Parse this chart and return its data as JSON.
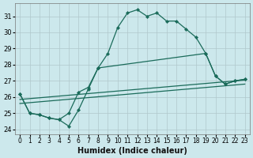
{
  "xlabel": "Humidex (Indice chaleur)",
  "bg_color": "#cce8ec",
  "grid_color": "#b8d8dc",
  "line_color": "#1a6b5a",
  "xlim": [
    -0.5,
    23.5
  ],
  "ylim": [
    23.7,
    31.8
  ],
  "xticks": [
    0,
    1,
    2,
    3,
    4,
    5,
    6,
    7,
    8,
    9,
    10,
    11,
    12,
    13,
    14,
    15,
    16,
    17,
    18,
    19,
    20,
    21,
    22,
    23
  ],
  "yticks": [
    24,
    25,
    26,
    27,
    28,
    29,
    30,
    31
  ],
  "curve1_x": [
    0,
    1,
    2,
    3,
    4,
    5,
    6,
    7,
    8,
    9,
    10,
    11,
    12,
    13,
    14,
    15,
    16,
    17,
    18,
    19,
    20,
    21,
    22,
    23
  ],
  "curve1_y": [
    26.2,
    25.0,
    24.9,
    24.7,
    24.6,
    24.2,
    25.2,
    26.5,
    27.8,
    28.7,
    30.3,
    31.2,
    31.4,
    31.0,
    31.2,
    30.7,
    30.7,
    30.2,
    29.7,
    28.7,
    27.3,
    26.8,
    27.0,
    27.1
  ],
  "curve2_x": [
    0,
    1,
    2,
    3,
    4,
    5,
    6,
    7,
    8,
    19,
    20,
    21,
    22,
    23
  ],
  "curve2_y": [
    26.2,
    25.0,
    24.9,
    24.7,
    24.6,
    25.0,
    26.3,
    26.6,
    27.8,
    28.7,
    27.3,
    26.8,
    27.0,
    27.1
  ],
  "line3_x": [
    0,
    23
  ],
  "line3_y": [
    25.85,
    27.05
  ],
  "line4_x": [
    0,
    23
  ],
  "line4_y": [
    25.6,
    26.8
  ]
}
